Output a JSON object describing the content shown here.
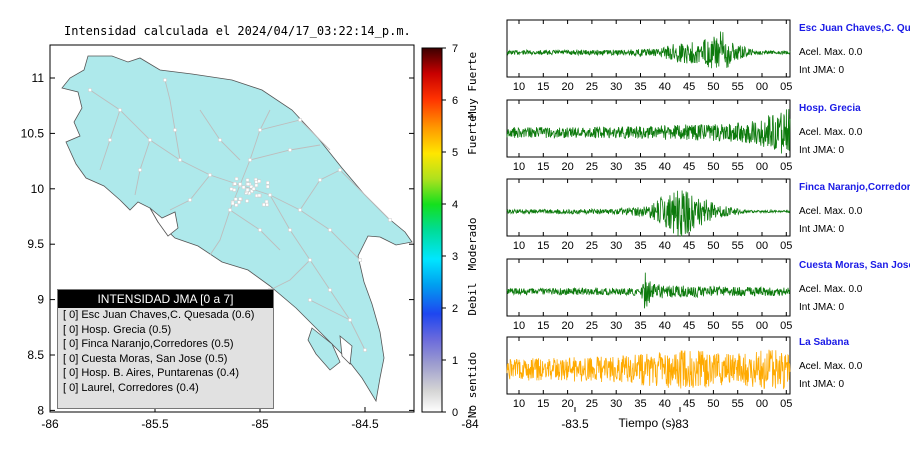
{
  "map": {
    "title": "Intensidad calculada el 2024/04/17_03:22:14_p.m.",
    "x_ticks": [
      "-86",
      "-85.5",
      "-85",
      "-84.5",
      "-84",
      "-83.5",
      "-83"
    ],
    "y_ticks": [
      "11",
      "10.5",
      "10",
      "9.5",
      "9",
      "8.5",
      "8"
    ],
    "legend": {
      "header": "INTENSIDAD JMA [0 a 7]",
      "rows": [
        "[ 0]  Esc Juan Chaves,C. Quesada (0.6)",
        "[ 0]  Hosp. Grecia (0.5)",
        "[ 0]  Finca Naranjo,Corredores (0.5)",
        "[ 0]  Cuesta Moras, San Jose (0.5)",
        "[ 0]  Hosp. B. Aires, Puntarenas (0.4)",
        "[ 0]  Laurel, Corredores (0.4)"
      ]
    }
  },
  "colorbar": {
    "ticks": [
      "0",
      "1",
      "2",
      "3",
      "4",
      "5",
      "6",
      "7"
    ],
    "categories": [
      "No sentido",
      "Debil",
      "Moderado",
      "Fuerte",
      "Muy Fuerte"
    ]
  },
  "waveforms": {
    "x_ticks": [
      "10",
      "15",
      "20",
      "25",
      "30",
      "35",
      "40",
      "45",
      "50",
      "55",
      "00",
      "05"
    ],
    "xlabel": "Tiempo (s)",
    "stations": [
      {
        "name": "Esc Juan Chaves,C. Quesada",
        "accel": "Acel. Max. 0.0",
        "jma": "Int JMA: 0",
        "color": "#0c7a0c"
      },
      {
        "name": "Hosp. Grecia",
        "accel": "Acel. Max. 0.0",
        "jma": "Int JMA: 0",
        "color": "#0c7a0c"
      },
      {
        "name": "Finca Naranjo,Corredores",
        "accel": "Acel. Max. 0.0",
        "jma": "Int JMA: 0",
        "color": "#0c7a0c"
      },
      {
        "name": "Cuesta Moras, San Jose",
        "accel": "Acel. Max. 0.0",
        "jma": "Int JMA: 0",
        "color": "#0c7a0c"
      },
      {
        "name": "La Sabana",
        "accel": "Acel. Max. 0.0",
        "jma": "Int JMA: 0",
        "color": "#ffaa00"
      }
    ]
  },
  "chart_data": [
    {
      "type": "map",
      "title": "Intensidad calculada el 2024/04/17_03:22:14_p.m.",
      "xlim": [
        -86,
        -82.5
      ],
      "ylim": [
        8,
        11.3
      ],
      "land_color": "#aee9eb",
      "colorbar": {
        "range": [
          0,
          7
        ],
        "labels": [
          "No sentido",
          "Debil",
          "Moderado",
          "Fuerte",
          "Muy Fuerte"
        ]
      }
    },
    {
      "type": "line",
      "xlabel": "Tiempo (s)",
      "x_tick_labels": [
        "10",
        "15",
        "20",
        "25",
        "30",
        "35",
        "40",
        "45",
        "50",
        "55",
        "00",
        "05"
      ],
      "series": [
        {
          "name": "Esc Juan Chaves,C. Quesada",
          "envelope": [
            [
              8,
              0.08
            ],
            [
              30,
              0.1
            ],
            [
              40,
              0.15
            ],
            [
              44,
              0.45
            ],
            [
              48,
              0.4
            ],
            [
              51,
              0.65
            ],
            [
              53,
              0.85
            ],
            [
              56,
              0.3
            ],
            [
              60,
              0.08
            ],
            [
              67,
              0.06
            ]
          ]
        },
        {
          "name": "Hosp. Grecia",
          "envelope": [
            [
              8,
              0.2
            ],
            [
              30,
              0.22
            ],
            [
              45,
              0.3
            ],
            [
              55,
              0.35
            ],
            [
              60,
              0.45
            ],
            [
              64,
              0.8
            ],
            [
              67,
              0.9
            ]
          ]
        },
        {
          "name": "Finca Naranjo,Corredores",
          "envelope": [
            [
              8,
              0.08
            ],
            [
              30,
              0.1
            ],
            [
              37,
              0.2
            ],
            [
              41,
              0.65
            ],
            [
              44,
              1.0
            ],
            [
              48,
              0.6
            ],
            [
              52,
              0.25
            ],
            [
              58,
              0.05
            ],
            [
              67,
              0.04
            ]
          ]
        },
        {
          "name": "Cuesta Moras, San Jose",
          "envelope": [
            [
              8,
              0.12
            ],
            [
              36,
              0.15
            ],
            [
              37,
              0.95
            ],
            [
              38,
              0.3
            ],
            [
              42,
              0.25
            ],
            [
              50,
              0.2
            ],
            [
              67,
              0.15
            ]
          ]
        },
        {
          "name": "La Sabana",
          "envelope": [
            [
              8,
              0.4
            ],
            [
              30,
              0.5
            ],
            [
              45,
              0.75
            ],
            [
              55,
              0.6
            ],
            [
              62,
              0.8
            ],
            [
              67,
              0.7
            ]
          ]
        }
      ]
    }
  ]
}
